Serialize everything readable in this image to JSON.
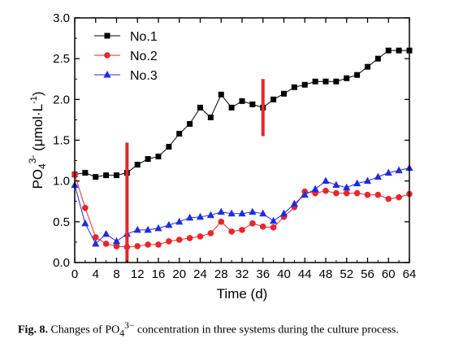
{
  "chart_data": {
    "type": "line",
    "xlabel": "Time (d)",
    "ylabel_main": "PO",
    "ylabel_sub": "4",
    "ylabel_sup": "3-",
    "ylabel_rest": " (μmol·L",
    "ylabel_unit_sup": "-1",
    "ylabel_end": ")",
    "xlim": [
      0,
      64
    ],
    "ylim": [
      0.0,
      3.0
    ],
    "x_ticks": [
      0,
      4,
      8,
      12,
      16,
      20,
      24,
      28,
      32,
      36,
      40,
      44,
      48,
      52,
      56,
      60,
      64
    ],
    "y_ticks": [
      "0.0",
      "0.5",
      "1.0",
      "1.5",
      "2.0",
      "2.5",
      "3.0"
    ],
    "legend_position": "top-left",
    "series": [
      {
        "name": "No.1",
        "color": "#000000",
        "marker": "square",
        "x": [
          0,
          2,
          4,
          6,
          8,
          10,
          12,
          14,
          16,
          18,
          20,
          22,
          24,
          26,
          28,
          30,
          32,
          34,
          36,
          38,
          40,
          42,
          44,
          46,
          48,
          50,
          52,
          54,
          56,
          58,
          60,
          62,
          64
        ],
        "y": [
          1.08,
          1.1,
          1.05,
          1.07,
          1.07,
          1.1,
          1.2,
          1.27,
          1.3,
          1.42,
          1.58,
          1.7,
          1.9,
          1.78,
          2.06,
          1.9,
          1.98,
          1.94,
          1.9,
          2.0,
          2.07,
          2.15,
          2.18,
          2.22,
          2.22,
          2.22,
          2.26,
          2.3,
          2.4,
          2.5,
          2.6,
          2.6,
          2.6
        ]
      },
      {
        "name": "No.2",
        "color": "#e8262b",
        "marker": "circle",
        "x": [
          0,
          2,
          4,
          6,
          8,
          10,
          12,
          14,
          16,
          18,
          20,
          22,
          24,
          26,
          28,
          30,
          32,
          34,
          36,
          38,
          40,
          42,
          44,
          46,
          48,
          50,
          52,
          54,
          56,
          58,
          60,
          62,
          64
        ],
        "y": [
          1.08,
          0.67,
          0.31,
          0.23,
          0.2,
          0.19,
          0.2,
          0.22,
          0.22,
          0.26,
          0.28,
          0.3,
          0.32,
          0.36,
          0.5,
          0.38,
          0.4,
          0.48,
          0.44,
          0.43,
          0.56,
          0.68,
          0.87,
          0.85,
          0.88,
          0.85,
          0.85,
          0.85,
          0.83,
          0.83,
          0.78,
          0.8,
          0.84
        ]
      },
      {
        "name": "No.3",
        "color": "#1f2be0",
        "marker": "triangle",
        "x": [
          0,
          2,
          4,
          6,
          8,
          10,
          12,
          14,
          16,
          18,
          20,
          22,
          24,
          26,
          28,
          30,
          32,
          34,
          36,
          38,
          40,
          42,
          44,
          46,
          48,
          50,
          52,
          54,
          56,
          58,
          60,
          62,
          64
        ],
        "y": [
          0.95,
          0.48,
          0.23,
          0.35,
          0.26,
          0.35,
          0.4,
          0.4,
          0.42,
          0.46,
          0.5,
          0.55,
          0.56,
          0.58,
          0.62,
          0.6,
          0.6,
          0.62,
          0.6,
          0.51,
          0.6,
          0.72,
          0.83,
          0.9,
          1.0,
          0.95,
          0.92,
          0.97,
          1.0,
          1.05,
          1.1,
          1.13,
          1.16
        ]
      }
    ],
    "markers": [
      {
        "x": 10,
        "y_from": 0.0,
        "y_to": 1.47,
        "color": "#e8262b"
      },
      {
        "x": 36,
        "y_from": 1.55,
        "y_to": 2.25,
        "color": "#e8262b"
      }
    ]
  },
  "caption": {
    "fig_label": "Fig. 8.",
    "text_before": " Changes of PO",
    "text_sub": "4",
    "text_sup": "3−",
    "text_after": " concentration in three systems during the culture process."
  }
}
